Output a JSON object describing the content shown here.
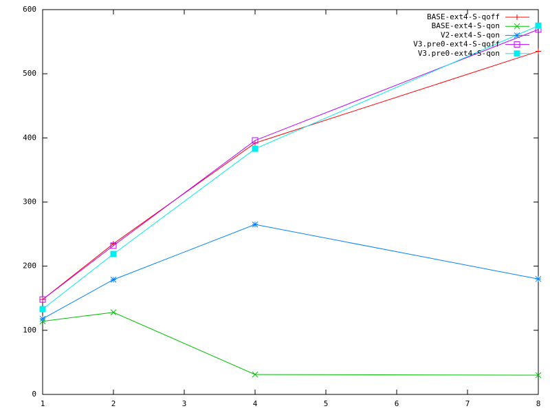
{
  "chart_data": {
    "type": "line",
    "x": [
      1,
      2,
      4,
      8
    ],
    "xlim": [
      1,
      8
    ],
    "xticks": [
      1,
      2,
      3,
      4,
      5,
      6,
      7,
      8
    ],
    "ylim": [
      0,
      600
    ],
    "yticks": [
      0,
      100,
      200,
      300,
      400,
      500,
      600
    ],
    "grid": false,
    "legend": "top-right",
    "series": [
      {
        "name": "BASE-ext4-S-qoff",
        "color": "#ff0000",
        "marker": "plus",
        "values": [
          148,
          235,
          392,
          535
        ]
      },
      {
        "name": "BASE-ext4-S-qon",
        "color": "#00c000",
        "marker": "cross",
        "values": [
          114,
          128,
          31,
          30
        ]
      },
      {
        "name": "V2-ext4-S-qon",
        "color": "#0080ff",
        "marker": "star",
        "values": [
          118,
          179,
          265,
          180
        ]
      },
      {
        "name": "V3.pre0-ext4-S-qoff",
        "color": "#c000ff",
        "marker": "box",
        "values": [
          148,
          232,
          396,
          569
        ]
      },
      {
        "name": "V3.pre0-ext4-S-qon",
        "color": "#00eeee",
        "marker": "filled-box",
        "values": [
          133,
          219,
          383,
          575
        ]
      }
    ]
  }
}
